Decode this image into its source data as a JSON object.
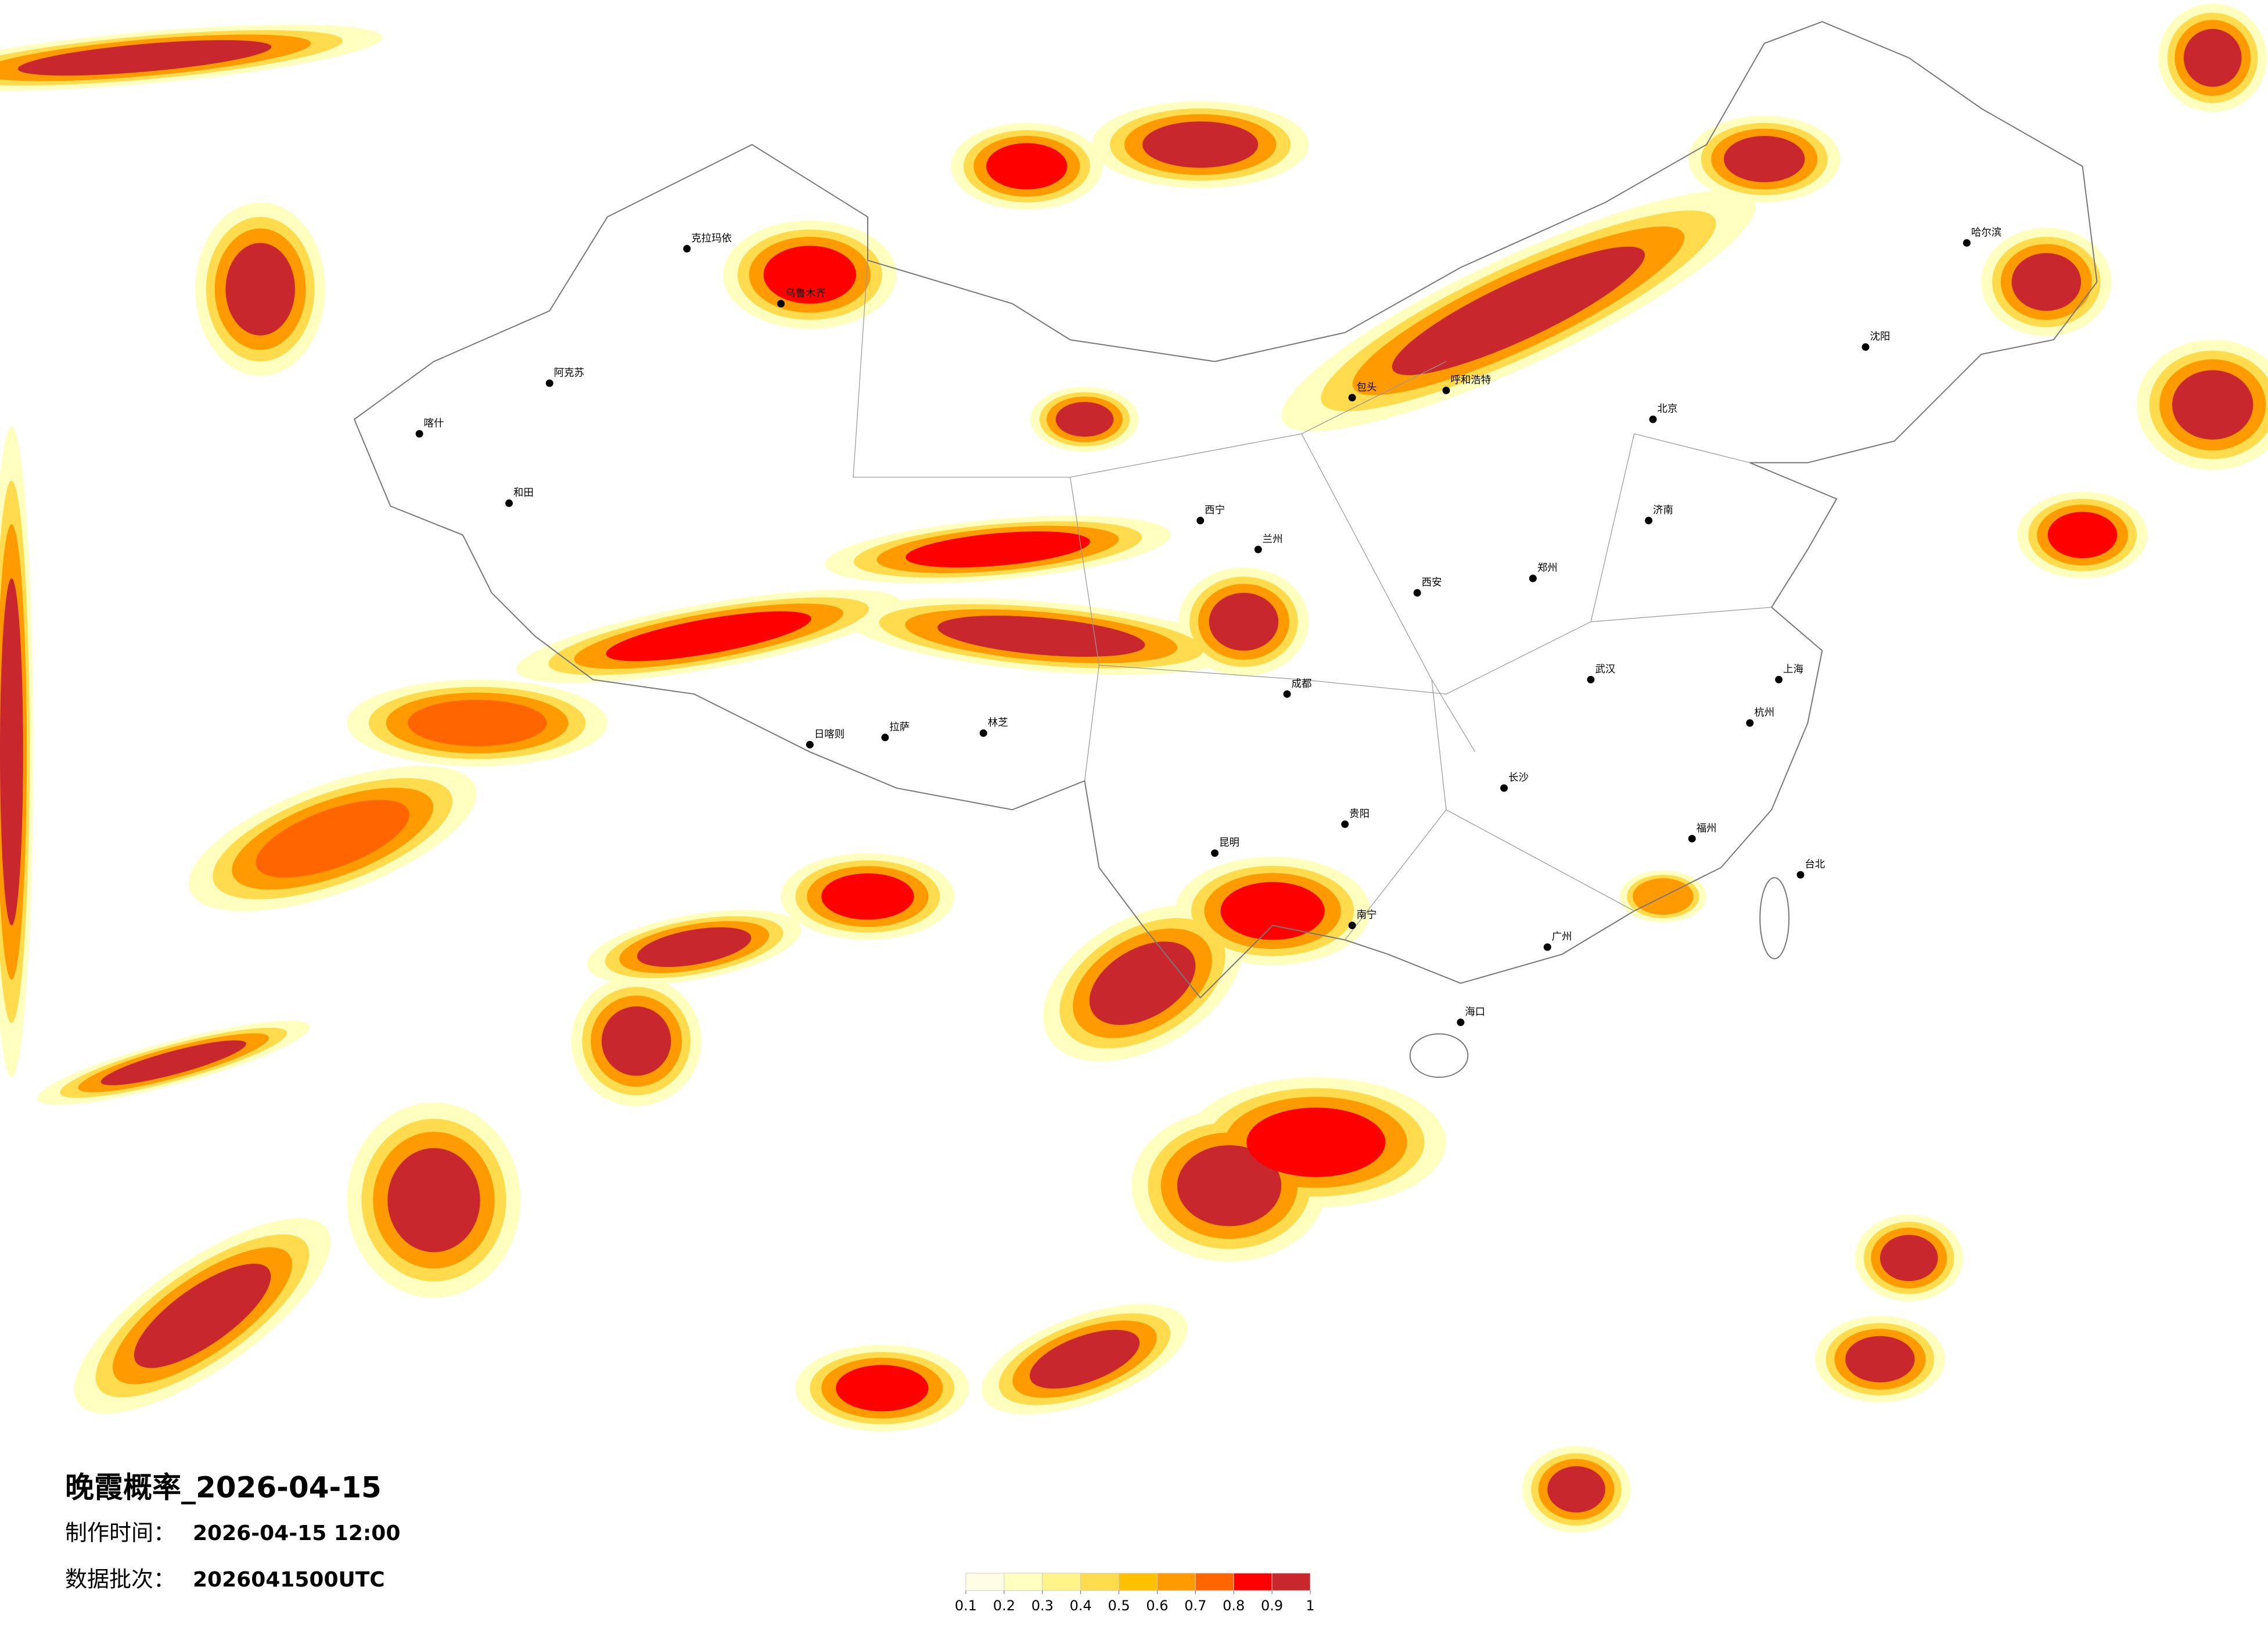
{
  "title": "晚霞概率_2026-04-15",
  "made_label": "制作时间：",
  "made_time": "2026-04-15 12:00",
  "batch_label": "数据批次：",
  "batch": "2026041500UTC",
  "legend": {
    "ticks": [
      0.1,
      0.2,
      0.3,
      0.4,
      0.5,
      0.6,
      0.7,
      0.8,
      0.9,
      1
    ],
    "colors": [
      "#fffde6",
      "#ffffbf",
      "#fff38a",
      "#ffdb4d",
      "#ffc000",
      "#ff9a00",
      "#ff6600",
      "#ff0000",
      "#c8282d"
    ]
  },
  "cities": [
    "北京",
    "上海",
    "广州",
    "武汉",
    "成都",
    "乌鲁木齐",
    "拉萨",
    "哈尔滨",
    "昆明",
    "西宁",
    "兰州",
    "克拉玛依",
    "阿克苏",
    "和田",
    "喀什",
    "日喀则",
    "林芝",
    "海口",
    "台北",
    "南宁",
    "西安",
    "长沙",
    "杭州",
    "沈阳",
    "呼和浩特",
    "包头",
    "郑州",
    "贵阳",
    "福州",
    "济南"
  ]
}
